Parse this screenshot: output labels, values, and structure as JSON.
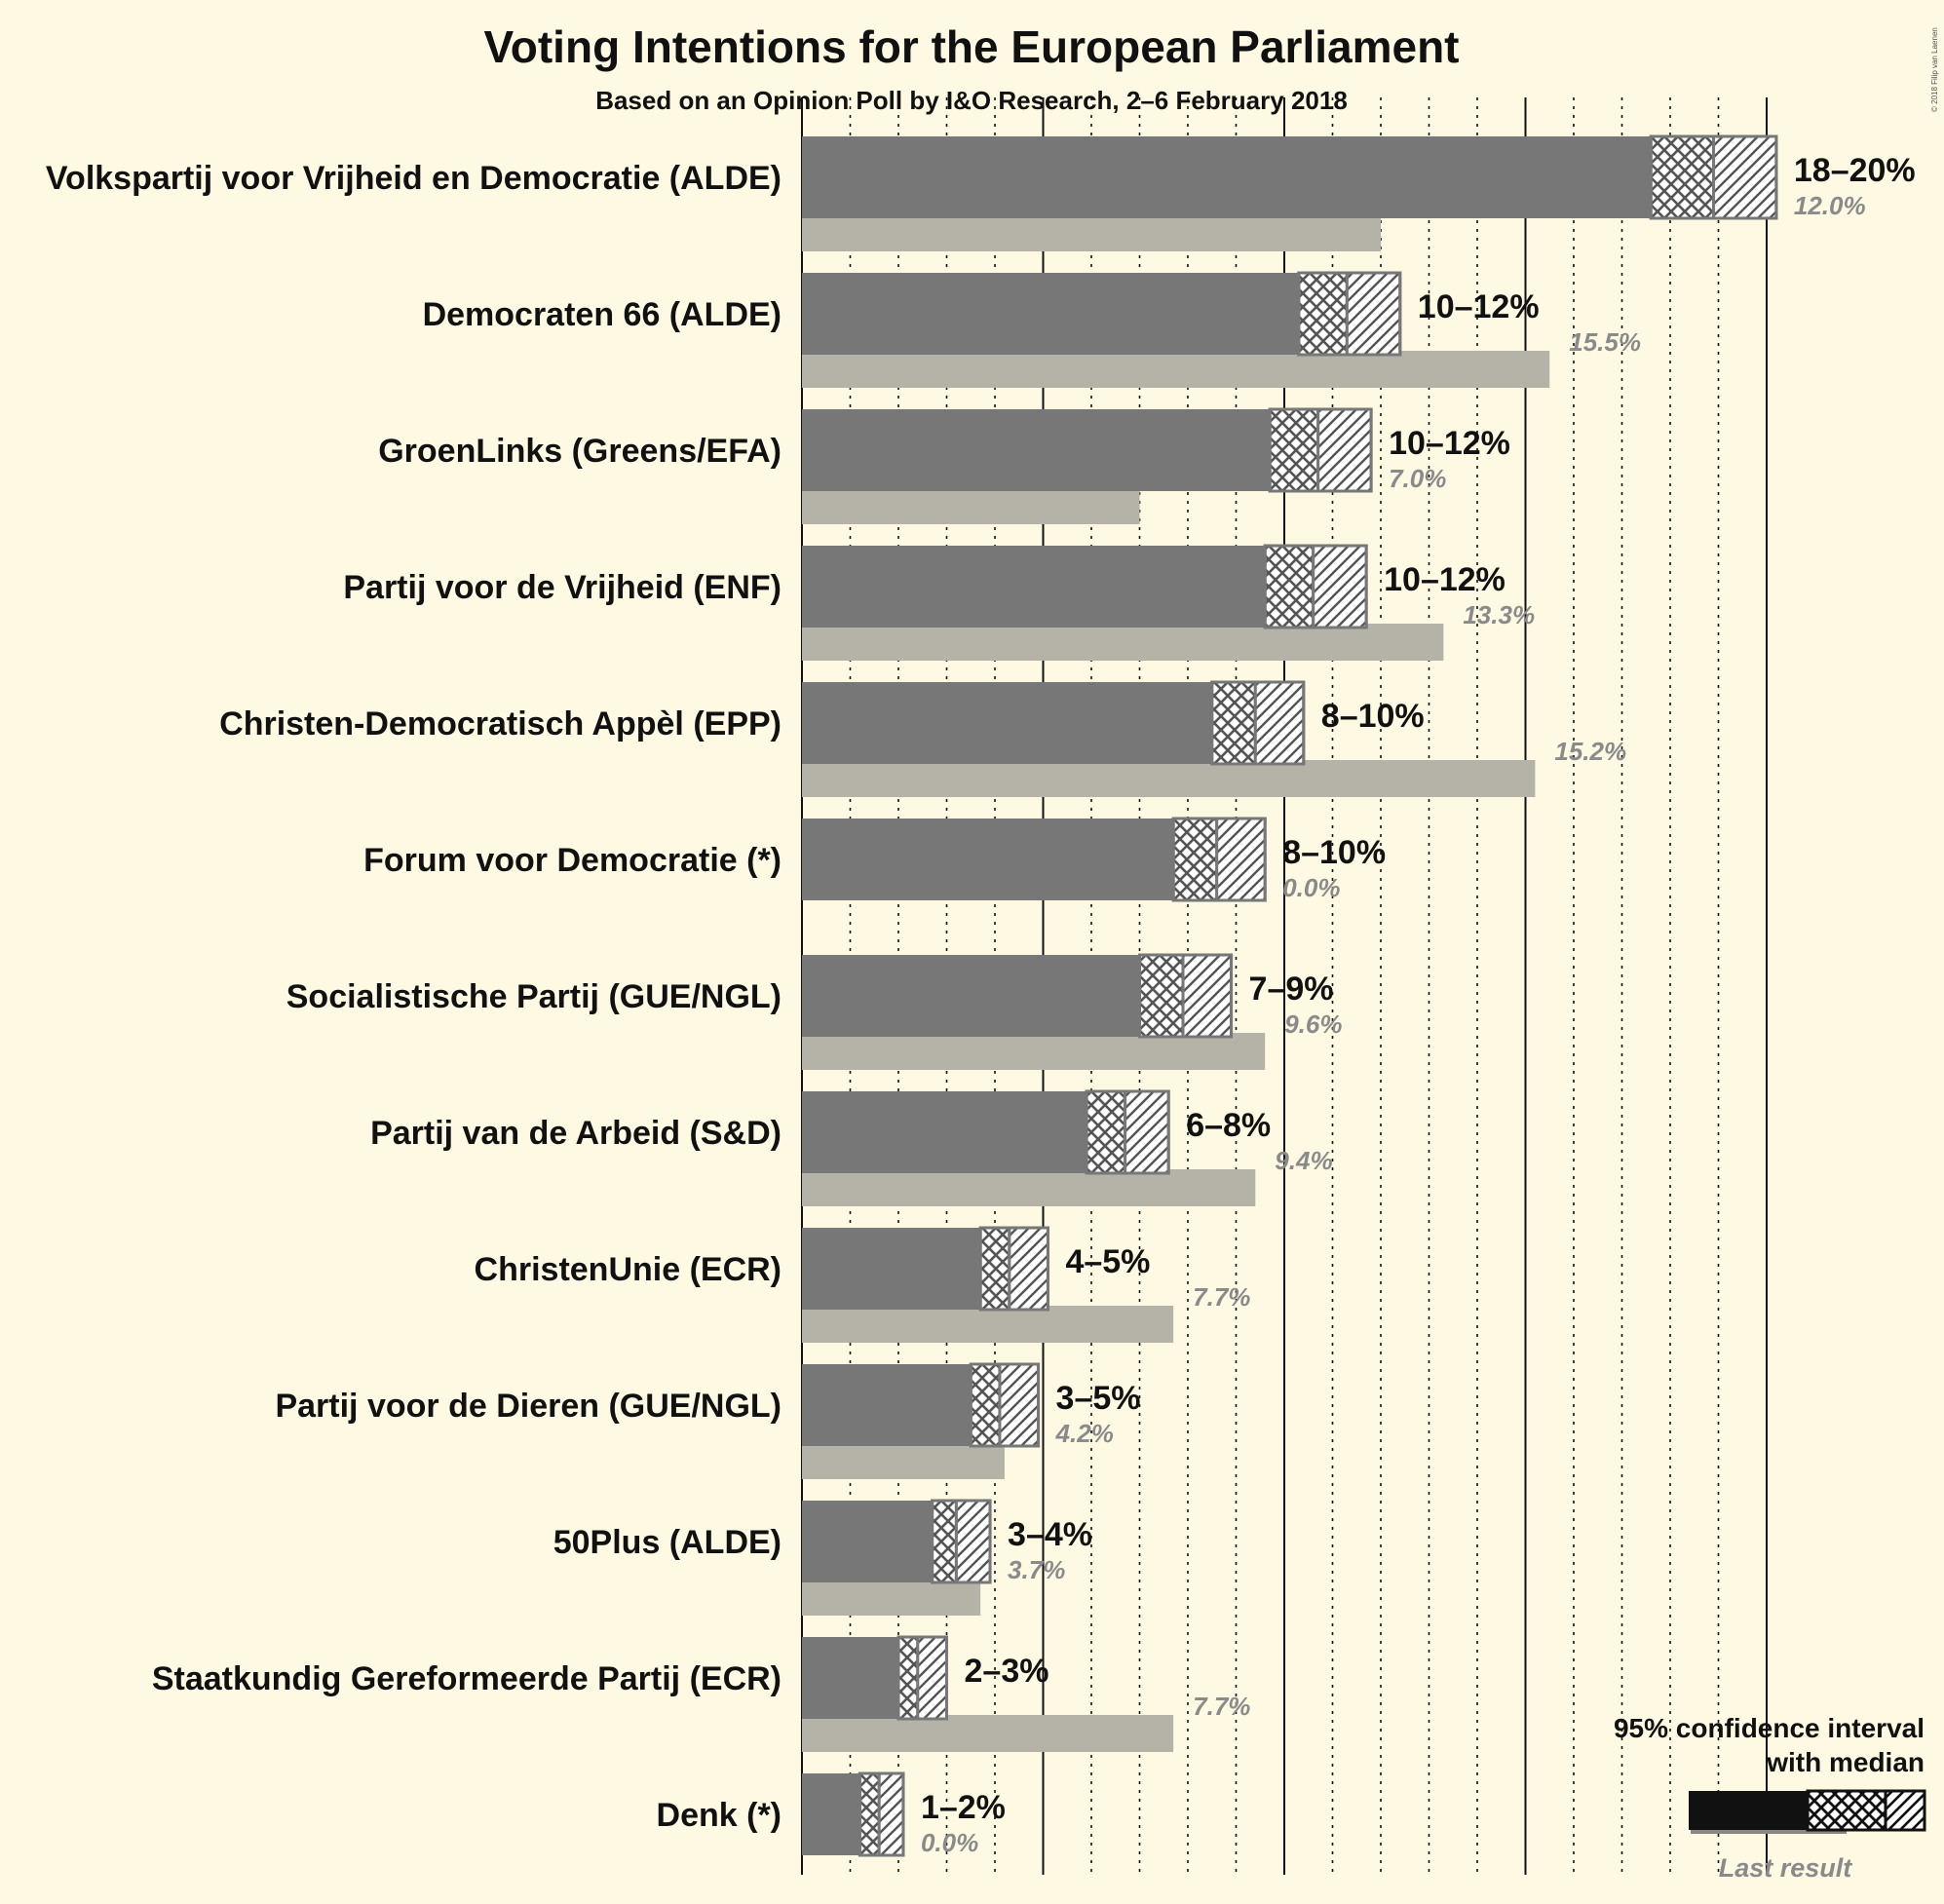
{
  "chart_data": {
    "type": "bar",
    "title": "Voting Intentions for the European Parliament",
    "subtitle": "Based on an Opinion Poll by I&O Research, 2–6 February 2018",
    "copyright": "© 2018 Filip van Laenen",
    "legend": {
      "ci_label_line1": "95% confidence interval",
      "ci_label_line2": "with median",
      "last_result_label": "Last result",
      "placement": "bottom-right"
    },
    "xlim": [
      0,
      20
    ],
    "x_gridlines": {
      "solid_every": 5,
      "dotted_every": 1
    },
    "colors": {
      "background": "#fdf9e3",
      "bar": "#777777",
      "last_result": "#b5b3a8",
      "hatch_stroke": "#555555",
      "legend_bar": "#111111"
    },
    "parties": [
      {
        "name": "Volkspartij voor Vrijheid en Democratie (ALDE)",
        "range_label": "18–20%",
        "last_label": "12.0%",
        "ci_low": 17.6,
        "median": 18.9,
        "ci_high": 20.2,
        "last": 12.0
      },
      {
        "name": "Democraten 66 (ALDE)",
        "range_label": "10–12%",
        "last_label": "15.5%",
        "ci_low": 10.3,
        "median": 11.3,
        "ci_high": 12.4,
        "last": 15.5
      },
      {
        "name": "GroenLinks (Greens/EFA)",
        "range_label": "10–12%",
        "last_label": "7.0%",
        "ci_low": 9.7,
        "median": 10.7,
        "ci_high": 11.8,
        "last": 7.0
      },
      {
        "name": "Partij voor de Vrijheid (ENF)",
        "range_label": "10–12%",
        "last_label": "13.3%",
        "ci_low": 9.6,
        "median": 10.6,
        "ci_high": 11.7,
        "last": 13.3
      },
      {
        "name": "Christen-Democratisch Appèl (EPP)",
        "range_label": "8–10%",
        "last_label": "15.2%",
        "ci_low": 8.5,
        "median": 9.4,
        "ci_high": 10.4,
        "last": 15.2
      },
      {
        "name": "Forum voor Democratie (*)",
        "range_label": "8–10%",
        "last_label": "0.0%",
        "ci_low": 7.7,
        "median": 8.6,
        "ci_high": 9.6,
        "last": 0.0
      },
      {
        "name": "Socialistische Partij (GUE/NGL)",
        "range_label": "7–9%",
        "last_label": "9.6%",
        "ci_low": 7.0,
        "median": 7.9,
        "ci_high": 8.9,
        "last": 9.6
      },
      {
        "name": "Partij van de Arbeid (S&D)",
        "range_label": "6–8%",
        "last_label": "9.4%",
        "ci_low": 5.9,
        "median": 6.7,
        "ci_high": 7.6,
        "last": 9.4
      },
      {
        "name": "ChristenUnie (ECR)",
        "range_label": "4–5%",
        "last_label": "7.7%",
        "ci_low": 3.7,
        "median": 4.3,
        "ci_high": 5.1,
        "last": 7.7
      },
      {
        "name": "Partij voor de Dieren (GUE/NGL)",
        "range_label": "3–5%",
        "last_label": "4.2%",
        "ci_low": 3.5,
        "median": 4.1,
        "ci_high": 4.9,
        "last": 4.2
      },
      {
        "name": "50Plus (ALDE)",
        "range_label": "3–4%",
        "last_label": "3.7%",
        "ci_low": 2.7,
        "median": 3.2,
        "ci_high": 3.9,
        "last": 3.7
      },
      {
        "name": "Staatkundig Gereformeerde Partij (ECR)",
        "range_label": "2–3%",
        "last_label": "7.7%",
        "ci_low": 2.0,
        "median": 2.4,
        "ci_high": 3.0,
        "last": 7.7
      },
      {
        "name": "Denk (*)",
        "range_label": "1–2%",
        "last_label": "0.0%",
        "ci_low": 1.2,
        "median": 1.6,
        "ci_high": 2.1,
        "last": 0.0
      }
    ]
  }
}
